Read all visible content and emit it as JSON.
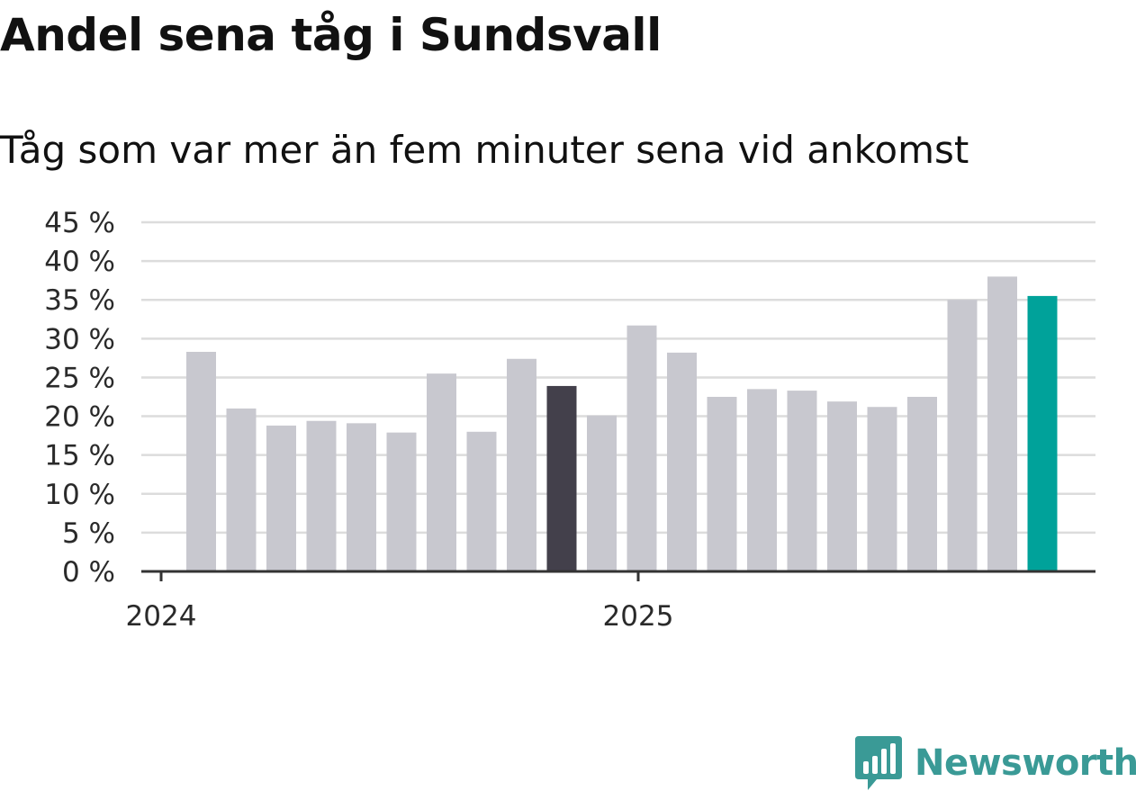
{
  "chart_data": {
    "type": "bar",
    "title": "Andel sena tåg i Sundsvall",
    "subtitle": "Tåg som var mer än fem minuter sena vid ankomst",
    "xlabel": "",
    "ylabel": "",
    "ylim": [
      0,
      45
    ],
    "yticks": [
      "0 %",
      "5 %",
      "10 %",
      "15 %",
      "20 %",
      "25 %",
      "30 %",
      "35 %",
      "40 %",
      "45 %"
    ],
    "xticks": [
      "2024",
      "2025"
    ],
    "grid": true,
    "values": [
      28.3,
      21.0,
      18.8,
      19.4,
      19.1,
      17.9,
      25.5,
      18.0,
      27.4,
      23.9,
      20.1,
      31.7,
      28.2,
      22.5,
      23.5,
      23.3,
      21.9,
      21.2,
      22.5,
      35.0,
      38.0,
      35.5
    ],
    "colors": {
      "default": "#c8c8cf",
      "highlight_dark": "#43404b",
      "highlight_latest": "#00a29a",
      "grid": "#dcdcdc",
      "axis": "#333333"
    },
    "highlight_dark_index": 9,
    "highlight_latest_index": 21
  },
  "brand": {
    "name": "Newsworthy",
    "icon": "newsworthy-logo-icon",
    "color": "#3a9a96"
  }
}
